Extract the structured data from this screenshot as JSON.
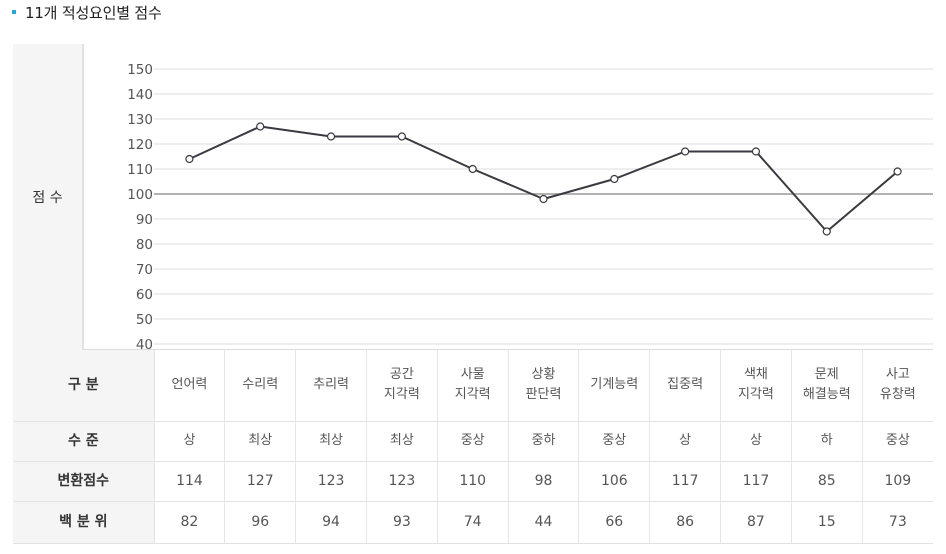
{
  "title": "11개 적성요인별 점수",
  "chart_label": "점 수",
  "chart_data": {
    "type": "line",
    "categories": [
      "언어력",
      "수리력",
      "추리력",
      "공간 지각력",
      "사물 지각력",
      "상황 판단력",
      "기계능력",
      "집중력",
      "색채 지각력",
      "문제 해결능력",
      "사고 유창력"
    ],
    "series": [
      {
        "values": [
          114,
          127,
          123,
          123,
          110,
          98,
          106,
          117,
          117,
          85,
          109
        ]
      }
    ],
    "yticks": [
      150,
      140,
      130,
      120,
      110,
      100,
      90,
      80,
      70,
      60,
      50,
      40
    ],
    "ylim": [
      40,
      150
    ],
    "reference_line": 100,
    "grid": true,
    "colors": {
      "line": "#3a3a42",
      "marker_fill": "#ffffff",
      "grid": "#dddddd",
      "reference": "#999999"
    }
  },
  "table": {
    "row_headers": {
      "category": "구 분",
      "level": "수 준",
      "score": "변환점수",
      "percentile": "백 분 위"
    },
    "categories": [
      [
        "언어력"
      ],
      [
        "수리력"
      ],
      [
        "추리력"
      ],
      [
        "공간",
        "지각력"
      ],
      [
        "사물",
        "지각력"
      ],
      [
        "상황",
        "판단력"
      ],
      [
        "기계능력"
      ],
      [
        "집중력"
      ],
      [
        "색채",
        "지각력"
      ],
      [
        "문제",
        "해결능력"
      ],
      [
        "사고",
        "유창력"
      ]
    ],
    "levels": [
      "상",
      "최상",
      "최상",
      "최상",
      "중상",
      "중하",
      "중상",
      "상",
      "상",
      "하",
      "중상"
    ],
    "scores": [
      "114",
      "127",
      "123",
      "123",
      "110",
      "98",
      "106",
      "117",
      "117",
      "85",
      "109"
    ],
    "percentiles": [
      "82",
      "96",
      "94",
      "93",
      "74",
      "44",
      "66",
      "86",
      "87",
      "15",
      "73"
    ]
  }
}
